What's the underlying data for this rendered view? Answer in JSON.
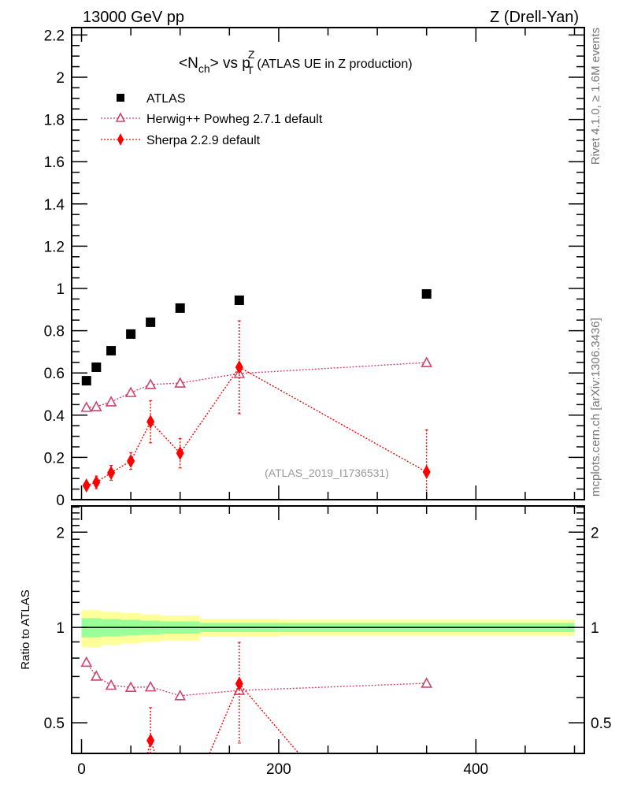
{
  "header": {
    "left": "13000 GeV pp",
    "right": "Z (Drell-Yan)",
    "side_top": "Rivet 4.1.0, ≥ 1.6M events",
    "side_bottom": "mcplots.cern.ch [arXiv:1306.3436]"
  },
  "chart_data": [
    {
      "type": "scatter",
      "title_main": "<N",
      "title_sub": "ch",
      "title_mid": "> vs p",
      "title_sup": "Z",
      "title_sub2": "T",
      "title_tail": " (ATLAS UE in Z production)",
      "watermark": "(ATLAS_2019_I1736531)",
      "xlim": [
        -10,
        510
      ],
      "ylim": [
        0,
        2.235
      ],
      "yticks": [
        0,
        0.2,
        0.4,
        0.6,
        0.8,
        1,
        1.2,
        1.4,
        1.6,
        1.8,
        2,
        2.2
      ],
      "ytick_labels": [
        "0",
        "0.2",
        "0.4",
        "0.6",
        "0.8",
        "1",
        "1.2",
        "1.4",
        "1.6",
        "1.8",
        "2",
        "2.2"
      ],
      "legend_placement": "top-left",
      "series": [
        {
          "name": "ATLAS",
          "marker": "square",
          "color": "#000000",
          "x": [
            5,
            15,
            30,
            50,
            70,
            100,
            160,
            350
          ],
          "y": [
            0.563,
            0.627,
            0.705,
            0.784,
            0.84,
            0.907,
            0.944,
            0.974
          ]
        },
        {
          "name": "Herwig++ Powheg 2.7.1 default",
          "marker": "open-triangle",
          "color": "#d0446e",
          "x": [
            5,
            15,
            30,
            50,
            70,
            100,
            160,
            350
          ],
          "y": [
            0.437,
            0.44,
            0.463,
            0.507,
            0.545,
            0.552,
            0.597,
            0.649
          ],
          "err": [
            0.005,
            0.005,
            0.006,
            0.007,
            0.008,
            0.008,
            0.01,
            0.015
          ]
        },
        {
          "name": "Sherpa 2.2.9 default",
          "marker": "diamond",
          "color": "#ff0000",
          "x": [
            5,
            15,
            30,
            50,
            70,
            100,
            160,
            350
          ],
          "y": [
            0.067,
            0.082,
            0.127,
            0.183,
            0.369,
            0.22,
            0.627,
            0.131
          ],
          "err": [
            0.015,
            0.03,
            0.035,
            0.04,
            0.1,
            0.07,
            0.22,
            0.2
          ]
        }
      ]
    },
    {
      "type": "scatter",
      "ylabel": "Ratio to ATLAS",
      "yscale": "log",
      "ylim": [
        0.4,
        2.42
      ],
      "yticks": [
        0.5,
        1,
        2
      ],
      "ytick_labels": [
        "0.5",
        "1",
        "2"
      ],
      "xticks": [
        0,
        200,
        400
      ],
      "xtick_labels": [
        "0",
        "200",
        "400"
      ],
      "band_edges": [
        0,
        10,
        20,
        40,
        60,
        80,
        120,
        200,
        500
      ],
      "band_total": [
        0.134,
        0.134,
        0.12,
        0.11,
        0.1,
        0.09,
        0.065,
        0.058
      ],
      "band_stat": [
        0.069,
        0.069,
        0.063,
        0.057,
        0.051,
        0.045,
        0.033,
        0.033
      ],
      "band_total_color": "#ffff99",
      "band_stat_color": "#99ff99"
    }
  ]
}
